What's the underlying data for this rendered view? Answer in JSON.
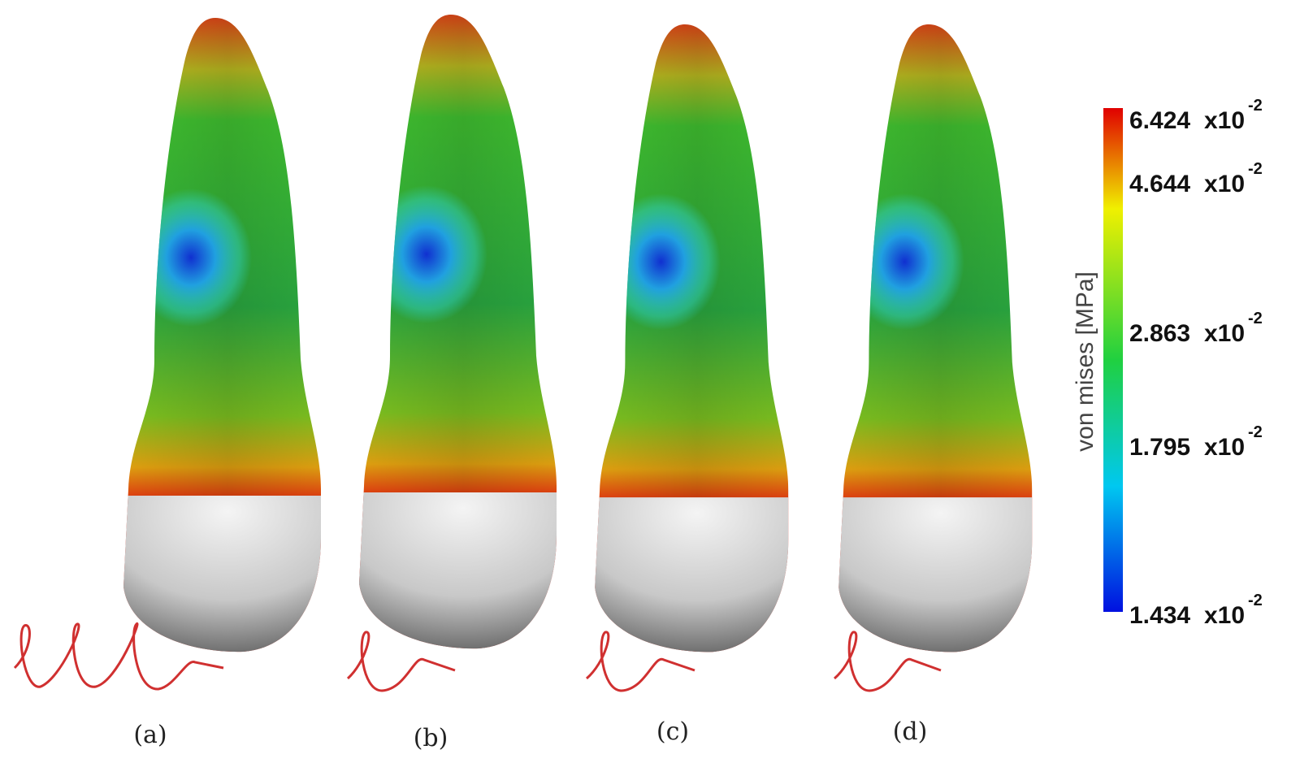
{
  "panels": [
    {
      "label": "(a)"
    },
    {
      "label": "(b)"
    },
    {
      "label": "(c)"
    },
    {
      "label": "(d)"
    }
  ],
  "colorbar": {
    "title": "von mises [MPa]",
    "ticks": [
      {
        "mantissa": "6.424",
        "base": "x10",
        "exponent": "-2"
      },
      {
        "mantissa": "4.644",
        "base": "x10",
        "exponent": "-2"
      },
      {
        "mantissa": "2.863",
        "base": "x10",
        "exponent": "-2"
      },
      {
        "mantissa": "1.795",
        "base": "x10",
        "exponent": "-2"
      },
      {
        "mantissa": "1.434",
        "base": "x10",
        "exponent": "-2"
      }
    ]
  }
}
